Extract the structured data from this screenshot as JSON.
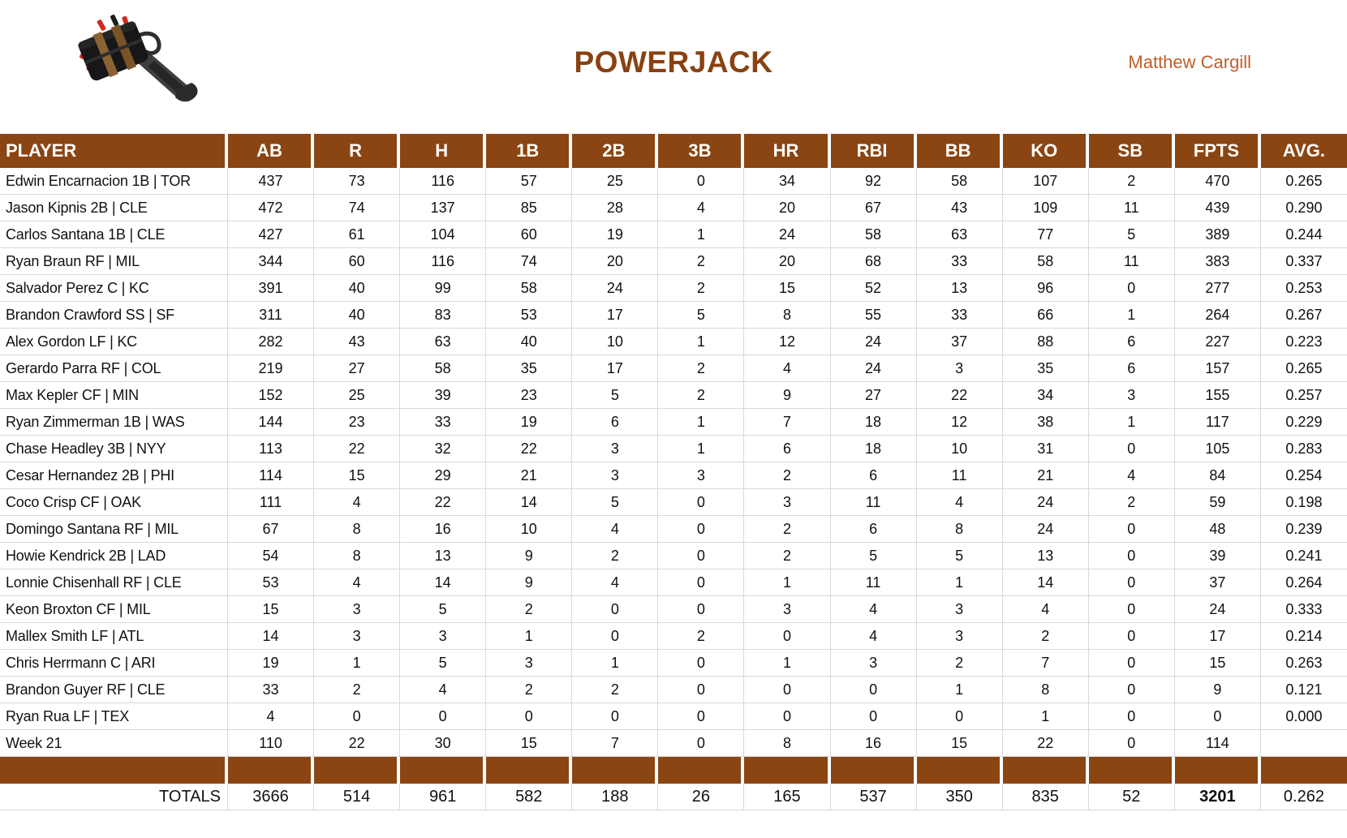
{
  "header": {
    "title": "POWERJACK",
    "owner": "Matthew Cargill",
    "logo_icon": "powerjack-hammer-logo"
  },
  "colors": {
    "accent_brown": "#8A4513",
    "title_brown": "#8A4110",
    "owner_orange": "#C05E2A",
    "gridline_gray": "#D9D9D9",
    "header_text": "#FFFFFF"
  },
  "table": {
    "columns": [
      "PLAYER",
      "AB",
      "R",
      "H",
      "1B",
      "2B",
      "3B",
      "HR",
      "RBI",
      "BB",
      "KO",
      "SB",
      "FPTS",
      "AVG."
    ],
    "rows": [
      {
        "player": "Edwin Encarnacion 1B | TOR",
        "values": [
          "437",
          "73",
          "116",
          "57",
          "25",
          "0",
          "34",
          "92",
          "58",
          "107",
          "2",
          "470",
          "0.265"
        ]
      },
      {
        "player": "Jason Kipnis 2B | CLE",
        "values": [
          "472",
          "74",
          "137",
          "85",
          "28",
          "4",
          "20",
          "67",
          "43",
          "109",
          "11",
          "439",
          "0.290"
        ]
      },
      {
        "player": "Carlos Santana 1B | CLE",
        "values": [
          "427",
          "61",
          "104",
          "60",
          "19",
          "1",
          "24",
          "58",
          "63",
          "77",
          "5",
          "389",
          "0.244"
        ]
      },
      {
        "player": "Ryan Braun RF | MIL",
        "values": [
          "344",
          "60",
          "116",
          "74",
          "20",
          "2",
          "20",
          "68",
          "33",
          "58",
          "11",
          "383",
          "0.337"
        ]
      },
      {
        "player": "Salvador Perez C | KC",
        "values": [
          "391",
          "40",
          "99",
          "58",
          "24",
          "2",
          "15",
          "52",
          "13",
          "96",
          "0",
          "277",
          "0.253"
        ]
      },
      {
        "player": "Brandon Crawford SS | SF",
        "values": [
          "311",
          "40",
          "83",
          "53",
          "17",
          "5",
          "8",
          "55",
          "33",
          "66",
          "1",
          "264",
          "0.267"
        ]
      },
      {
        "player": "Alex Gordon LF | KC",
        "values": [
          "282",
          "43",
          "63",
          "40",
          "10",
          "1",
          "12",
          "24",
          "37",
          "88",
          "6",
          "227",
          "0.223"
        ]
      },
      {
        "player": "Gerardo Parra RF | COL",
        "values": [
          "219",
          "27",
          "58",
          "35",
          "17",
          "2",
          "4",
          "24",
          "3",
          "35",
          "6",
          "157",
          "0.265"
        ]
      },
      {
        "player": "Max Kepler CF | MIN",
        "values": [
          "152",
          "25",
          "39",
          "23",
          "5",
          "2",
          "9",
          "27",
          "22",
          "34",
          "3",
          "155",
          "0.257"
        ]
      },
      {
        "player": "Ryan Zimmerman 1B | WAS",
        "values": [
          "144",
          "23",
          "33",
          "19",
          "6",
          "1",
          "7",
          "18",
          "12",
          "38",
          "1",
          "117",
          "0.229"
        ]
      },
      {
        "player": "Chase Headley 3B | NYY",
        "values": [
          "113",
          "22",
          "32",
          "22",
          "3",
          "1",
          "6",
          "18",
          "10",
          "31",
          "0",
          "105",
          "0.283"
        ]
      },
      {
        "player": "Cesar Hernandez 2B | PHI",
        "values": [
          "114",
          "15",
          "29",
          "21",
          "3",
          "3",
          "2",
          "6",
          "11",
          "21",
          "4",
          "84",
          "0.254"
        ]
      },
      {
        "player": "Coco Crisp CF | OAK",
        "values": [
          "111",
          "4",
          "22",
          "14",
          "5",
          "0",
          "3",
          "11",
          "4",
          "24",
          "2",
          "59",
          "0.198"
        ]
      },
      {
        "player": "Domingo Santana RF | MIL",
        "values": [
          "67",
          "8",
          "16",
          "10",
          "4",
          "0",
          "2",
          "6",
          "8",
          "24",
          "0",
          "48",
          "0.239"
        ]
      },
      {
        "player": "Howie Kendrick 2B | LAD",
        "values": [
          "54",
          "8",
          "13",
          "9",
          "2",
          "0",
          "2",
          "5",
          "5",
          "13",
          "0",
          "39",
          "0.241"
        ]
      },
      {
        "player": "Lonnie Chisenhall RF | CLE",
        "values": [
          "53",
          "4",
          "14",
          "9",
          "4",
          "0",
          "1",
          "11",
          "1",
          "14",
          "0",
          "37",
          "0.264"
        ]
      },
      {
        "player": "Keon Broxton CF | MIL",
        "values": [
          "15",
          "3",
          "5",
          "2",
          "0",
          "0",
          "3",
          "4",
          "3",
          "4",
          "0",
          "24",
          "0.333"
        ]
      },
      {
        "player": "Mallex Smith LF | ATL",
        "values": [
          "14",
          "3",
          "3",
          "1",
          "0",
          "2",
          "0",
          "4",
          "3",
          "2",
          "0",
          "17",
          "0.214"
        ]
      },
      {
        "player": "Chris Herrmann C | ARI",
        "values": [
          "19",
          "1",
          "5",
          "3",
          "1",
          "0",
          "1",
          "3",
          "2",
          "7",
          "0",
          "15",
          "0.263"
        ]
      },
      {
        "player": "Brandon Guyer RF | CLE",
        "values": [
          "33",
          "2",
          "4",
          "2",
          "2",
          "0",
          "0",
          "0",
          "1",
          "8",
          "0",
          "9",
          "0.121"
        ]
      },
      {
        "player": "Ryan Rua LF | TEX",
        "values": [
          "4",
          "0",
          "0",
          "0",
          "0",
          "0",
          "0",
          "0",
          "0",
          "1",
          "0",
          "0",
          "0.000"
        ]
      },
      {
        "player": "Week 21",
        "values": [
          "110",
          "22",
          "30",
          "15",
          "7",
          "0",
          "8",
          "16",
          "15",
          "22",
          "0",
          "114",
          ""
        ]
      }
    ],
    "totals": {
      "label": "TOTALS",
      "values": [
        "3666",
        "514",
        "961",
        "582",
        "188",
        "26",
        "165",
        "537",
        "350",
        "835",
        "52",
        "3201",
        "0.262"
      ],
      "bold_index": 11
    }
  }
}
